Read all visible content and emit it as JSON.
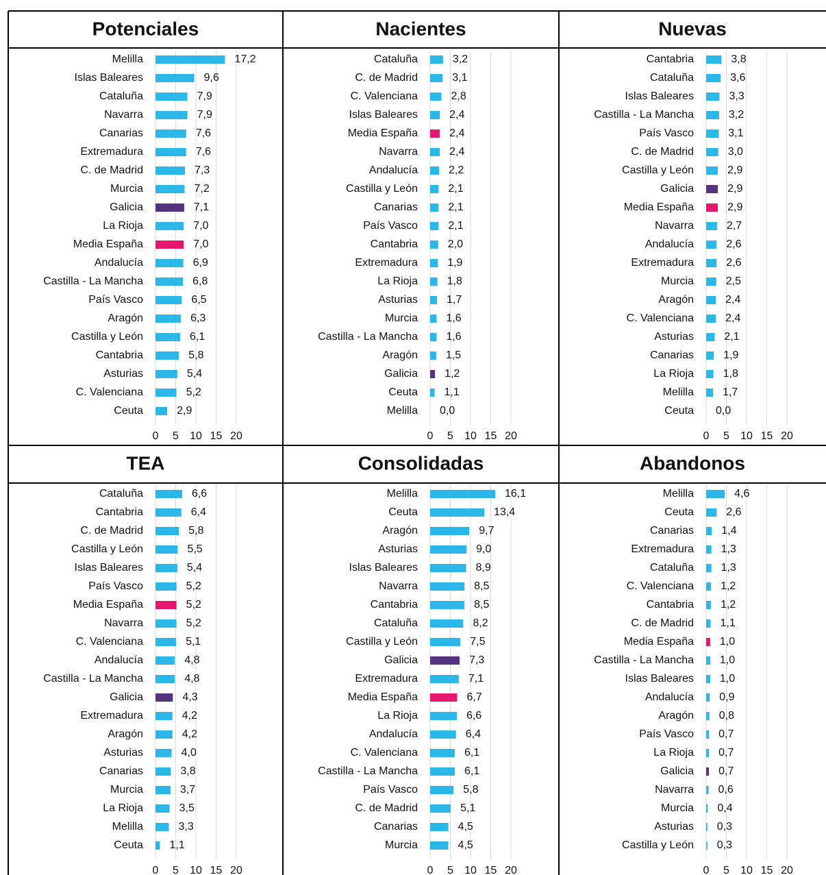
{
  "chart_data": [
    {
      "type": "barh",
      "title": "Potenciales",
      "categories": [
        "Melilla",
        "Islas Baleares",
        "Cataluña",
        "Navarra",
        "Canarias",
        "Extremadura",
        "C. de Madrid",
        "Murcia",
        "Galicia",
        "La Rioja",
        "Media España",
        "Andalucía",
        "Castilla - La Mancha",
        "País Vasco",
        "Aragón",
        "Castilla y León",
        "Cantabria",
        "Asturias",
        "C. Valenciana",
        "Ceuta"
      ],
      "values": [
        17.2,
        9.6,
        7.9,
        7.9,
        7.6,
        7.6,
        7.3,
        7.2,
        7.1,
        7.0,
        7.0,
        6.9,
        6.8,
        6.5,
        6.3,
        6.1,
        5.8,
        5.4,
        5.2,
        2.9
      ],
      "value_labels": [
        "17,2",
        "9,6",
        "7,9",
        "7,9",
        "7,6",
        "7,6",
        "7,3",
        "7,2",
        "7,1",
        "7,0",
        "7,0",
        "6,9",
        "6,8",
        "6,5",
        "6,3",
        "6,1",
        "5,8",
        "5,4",
        "5,2",
        "2,9"
      ],
      "colors": [
        "#2bb8e8",
        "#2bb8e8",
        "#2bb8e8",
        "#2bb8e8",
        "#2bb8e8",
        "#2bb8e8",
        "#2bb8e8",
        "#2bb8e8",
        "#55347f",
        "#2bb8e8",
        "#e5176f",
        "#2bb8e8",
        "#2bb8e8",
        "#2bb8e8",
        "#2bb8e8",
        "#2bb8e8",
        "#2bb8e8",
        "#2bb8e8",
        "#2bb8e8",
        "#2bb8e8"
      ],
      "xlim": [
        0,
        20
      ],
      "xticks": [
        0,
        5,
        10,
        15,
        20
      ],
      "grid": true
    },
    {
      "type": "barh",
      "title": "Nacientes",
      "categories": [
        "Cataluña",
        "C. de Madrid",
        "C. Valenciana",
        "Islas Baleares",
        "Media España",
        "Navarra",
        "Andalucía",
        "Castilla y León",
        "Canarias",
        "País Vasco",
        "Cantabria",
        "Extremadura",
        "La Rioja",
        "Asturias",
        "Murcia",
        "Castilla - La Mancha",
        "Aragón",
        "Galicia",
        "Ceuta",
        "Melilla"
      ],
      "values": [
        3.2,
        3.1,
        2.8,
        2.4,
        2.4,
        2.4,
        2.2,
        2.1,
        2.1,
        2.1,
        2.0,
        1.9,
        1.8,
        1.7,
        1.6,
        1.6,
        1.5,
        1.2,
        1.1,
        0.0
      ],
      "value_labels": [
        "3,2",
        "3,1",
        "2,8",
        "2,4",
        "2,4",
        "2,4",
        "2,2",
        "2,1",
        "2,1",
        "2,1",
        "2,0",
        "1,9",
        "1,8",
        "1,7",
        "1,6",
        "1,6",
        "1,5",
        "1,2",
        "1,1",
        "0,0"
      ],
      "colors": [
        "#2bb8e8",
        "#2bb8e8",
        "#2bb8e8",
        "#2bb8e8",
        "#e5176f",
        "#2bb8e8",
        "#2bb8e8",
        "#2bb8e8",
        "#2bb8e8",
        "#2bb8e8",
        "#2bb8e8",
        "#2bb8e8",
        "#2bb8e8",
        "#2bb8e8",
        "#2bb8e8",
        "#2bb8e8",
        "#2bb8e8",
        "#55347f",
        "#2bb8e8",
        "#2bb8e8"
      ],
      "xlim": [
        0,
        20
      ],
      "xticks": [
        0,
        5,
        10,
        15,
        20
      ],
      "grid": true
    },
    {
      "type": "barh",
      "title": "Nuevas",
      "categories": [
        "Cantabria",
        "Cataluña",
        "Islas Baleares",
        "Castilla - La Mancha",
        "País Vasco",
        "C. de Madrid",
        "Castilla y León",
        "Galicia",
        "Media España",
        "Navarra",
        "Andalucía",
        "Extremadura",
        "Murcia",
        "Aragón",
        "C. Valenciana",
        "Asturias",
        "Canarias",
        "La Rioja",
        "Melilla",
        "Ceuta"
      ],
      "values": [
        3.8,
        3.6,
        3.3,
        3.2,
        3.1,
        3.0,
        2.9,
        2.9,
        2.9,
        2.7,
        2.6,
        2.6,
        2.5,
        2.4,
        2.4,
        2.1,
        1.9,
        1.8,
        1.7,
        0.0
      ],
      "value_labels": [
        "3,8",
        "3,6",
        "3,3",
        "3,2",
        "3,1",
        "3,0",
        "2,9",
        "2,9",
        "2,9",
        "2,7",
        "2,6",
        "2,6",
        "2,5",
        "2,4",
        "2,4",
        "2,1",
        "1,9",
        "1,8",
        "1,7",
        "0,0"
      ],
      "colors": [
        "#2bb8e8",
        "#2bb8e8",
        "#2bb8e8",
        "#2bb8e8",
        "#2bb8e8",
        "#2bb8e8",
        "#2bb8e8",
        "#55347f",
        "#e5176f",
        "#2bb8e8",
        "#2bb8e8",
        "#2bb8e8",
        "#2bb8e8",
        "#2bb8e8",
        "#2bb8e8",
        "#2bb8e8",
        "#2bb8e8",
        "#2bb8e8",
        "#2bb8e8",
        "#2bb8e8"
      ],
      "xlim": [
        0,
        20
      ],
      "xticks": [
        0,
        5,
        10,
        15,
        20
      ],
      "grid": true
    },
    {
      "type": "barh",
      "title": "TEA",
      "categories": [
        "Cataluña",
        "Cantabria",
        "C. de Madrid",
        "Castilla y León",
        "Islas Baleares",
        "País Vasco",
        "Media España",
        "Navarra",
        "C. Valenciana",
        "Andalucía",
        "Castilla - La Mancha",
        "Galicia",
        "Extremadura",
        "Aragón",
        "Asturias",
        "Canarias",
        "Murcia",
        "La Rioja",
        "Melilla",
        "Ceuta"
      ],
      "values": [
        6.6,
        6.4,
        5.8,
        5.5,
        5.4,
        5.2,
        5.2,
        5.2,
        5.1,
        4.8,
        4.8,
        4.3,
        4.2,
        4.2,
        4.0,
        3.8,
        3.7,
        3.5,
        3.3,
        1.1
      ],
      "value_labels": [
        "6,6",
        "6,4",
        "5,8",
        "5,5",
        "5,4",
        "5,2",
        "5,2",
        "5,2",
        "5,1",
        "4,8",
        "4,8",
        "4,3",
        "4,2",
        "4,2",
        "4,0",
        "3,8",
        "3,7",
        "3,5",
        "3,3",
        "1,1"
      ],
      "colors": [
        "#2bb8e8",
        "#2bb8e8",
        "#2bb8e8",
        "#2bb8e8",
        "#2bb8e8",
        "#2bb8e8",
        "#e5176f",
        "#2bb8e8",
        "#2bb8e8",
        "#2bb8e8",
        "#2bb8e8",
        "#55347f",
        "#2bb8e8",
        "#2bb8e8",
        "#2bb8e8",
        "#2bb8e8",
        "#2bb8e8",
        "#2bb8e8",
        "#2bb8e8",
        "#2bb8e8"
      ],
      "xlim": [
        0,
        20
      ],
      "xticks": [
        0,
        5,
        10,
        15,
        20
      ],
      "grid": true
    },
    {
      "type": "barh",
      "title": "Consolidadas",
      "categories": [
        "Melilla",
        "Ceuta",
        "Aragón",
        "Asturias",
        "Islas Baleares",
        "Navarra",
        "Cantabria",
        "Cataluña",
        "Castilla y León",
        "Galicia",
        "Extremadura",
        "Media España",
        "La Rioja",
        "Andalucía",
        "C. Valenciana",
        "Castilla - La Mancha",
        "País Vasco",
        "C. de Madrid",
        "Canarias",
        "Murcia"
      ],
      "values": [
        16.1,
        13.4,
        9.7,
        9.0,
        8.9,
        8.5,
        8.5,
        8.2,
        7.5,
        7.3,
        7.1,
        6.7,
        6.6,
        6.4,
        6.1,
        6.1,
        5.8,
        5.1,
        4.5,
        4.5
      ],
      "value_labels": [
        "16,1",
        "13,4",
        "9,7",
        "9,0",
        "8,9",
        "8,5",
        "8,5",
        "8,2",
        "7,5",
        "7,3",
        "7,1",
        "6,7",
        "6,6",
        "6,4",
        "6,1",
        "6,1",
        "5,8",
        "5,1",
        "4,5",
        "4,5"
      ],
      "colors": [
        "#2bb8e8",
        "#2bb8e8",
        "#2bb8e8",
        "#2bb8e8",
        "#2bb8e8",
        "#2bb8e8",
        "#2bb8e8",
        "#2bb8e8",
        "#2bb8e8",
        "#55347f",
        "#2bb8e8",
        "#e5176f",
        "#2bb8e8",
        "#2bb8e8",
        "#2bb8e8",
        "#2bb8e8",
        "#2bb8e8",
        "#2bb8e8",
        "#2bb8e8",
        "#2bb8e8"
      ],
      "xlim": [
        0,
        20
      ],
      "xticks": [
        0,
        5,
        10,
        15,
        20
      ],
      "grid": true
    },
    {
      "type": "barh",
      "title": "Abandonos",
      "categories": [
        "Melilla",
        "Ceuta",
        "Canarias",
        "Extremadura",
        "Cataluña",
        "C. Valenciana",
        "Cantabria",
        "C. de Madrid",
        "Media España",
        "Castilla - La Mancha",
        "Islas Baleares",
        "Andalucía",
        "Aragón",
        "País Vasco",
        "La Rioja",
        "Galicia",
        "Navarra",
        "Murcia",
        "Asturias",
        "Castilla y León"
      ],
      "values": [
        4.6,
        2.6,
        1.4,
        1.3,
        1.3,
        1.2,
        1.2,
        1.1,
        1.0,
        1.0,
        1.0,
        0.9,
        0.8,
        0.7,
        0.7,
        0.7,
        0.6,
        0.4,
        0.3,
        0.3
      ],
      "value_labels": [
        "4,6",
        "2,6",
        "1,4",
        "1,3",
        "1,3",
        "1,2",
        "1,2",
        "1,1",
        "1,0",
        "1,0",
        "1,0",
        "0,9",
        "0,8",
        "0,7",
        "0,7",
        "0,7",
        "0,6",
        "0,4",
        "0,3",
        "0,3"
      ],
      "colors": [
        "#2bb8e8",
        "#2bb8e8",
        "#2bb8e8",
        "#2bb8e8",
        "#2bb8e8",
        "#2bb8e8",
        "#2bb8e8",
        "#2bb8e8",
        "#e5176f",
        "#2bb8e8",
        "#2bb8e8",
        "#2bb8e8",
        "#2bb8e8",
        "#2bb8e8",
        "#2bb8e8",
        "#55347f",
        "#2bb8e8",
        "#2bb8e8",
        "#2bb8e8",
        "#2bb8e8"
      ],
      "xlim": [
        0,
        20
      ],
      "xticks": [
        0,
        5,
        10,
        15,
        20
      ],
      "grid": true
    }
  ]
}
